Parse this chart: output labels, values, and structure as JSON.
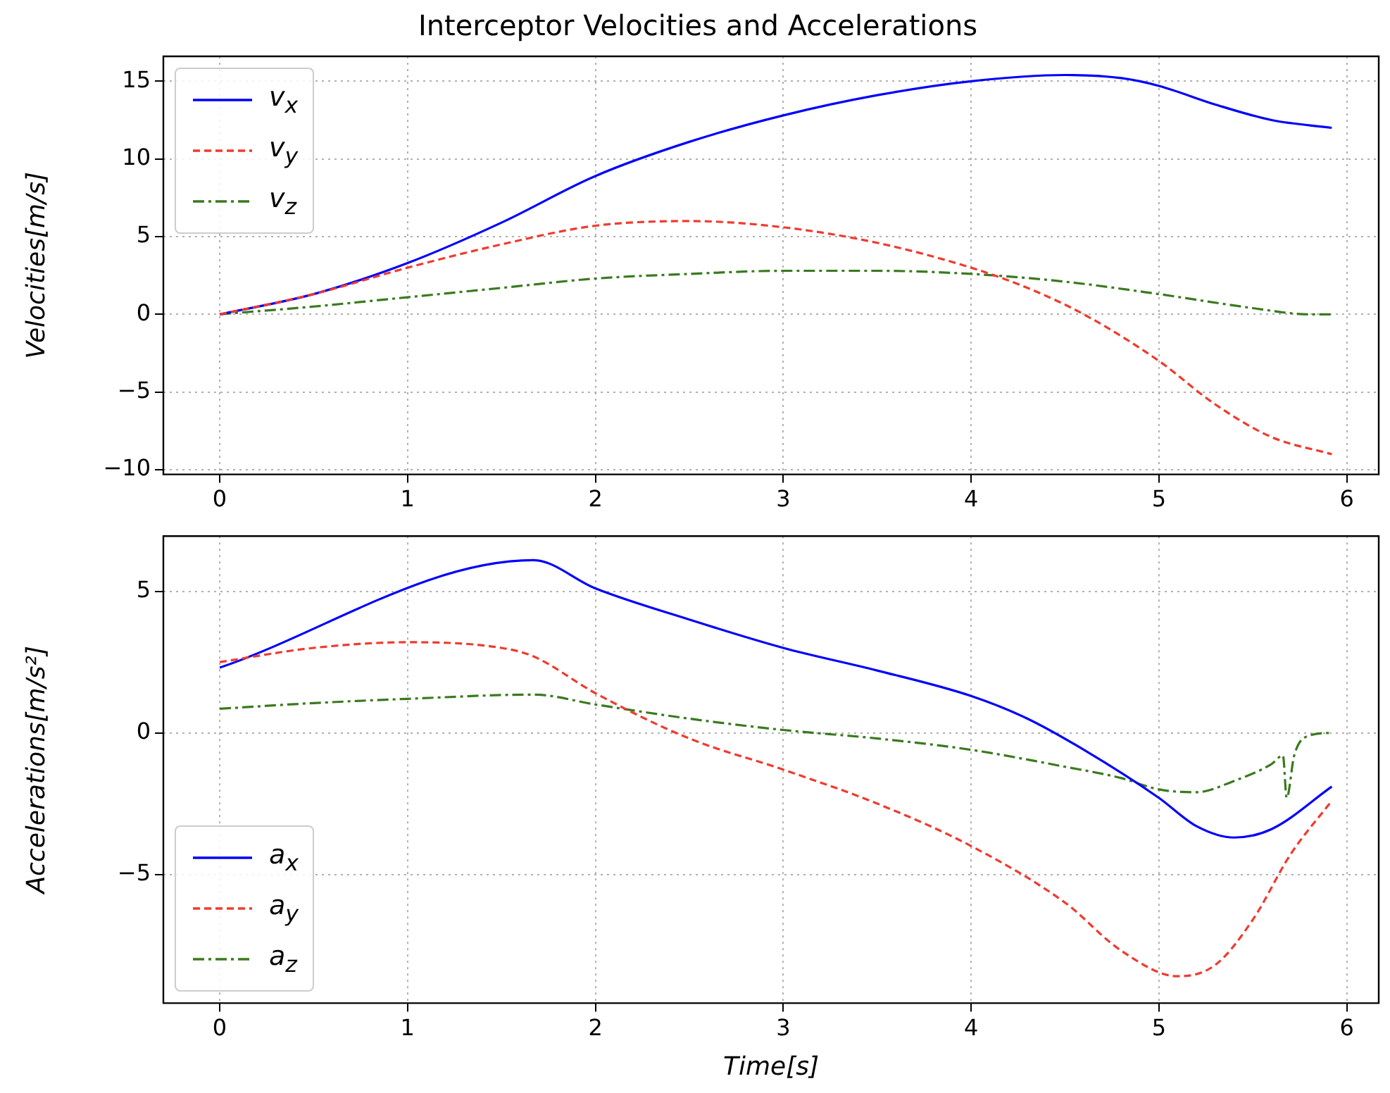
{
  "chart_data": [
    {
      "type": "line",
      "title": "Interceptor Velocities and Accelerations",
      "ylabel": "Velocities[m/s]",
      "xlim": [
        -0.3,
        6.17
      ],
      "xticks": [
        0,
        1,
        2,
        3,
        4,
        5,
        6
      ],
      "ylim": [
        -10.3,
        16.6
      ],
      "yticks": [
        -10,
        -5,
        0,
        5,
        10,
        15
      ],
      "grid": true,
      "legend": "top left",
      "series": [
        {
          "name": "v$_{x}$",
          "color": "#0000ff",
          "line_style": "solid",
          "x": [
            0,
            0.5,
            1,
            1.5,
            2,
            2.5,
            3,
            3.5,
            4,
            4.5,
            4.8,
            5,
            5.3,
            5.6,
            5.92
          ],
          "values": [
            0,
            1.3,
            3.3,
            5.9,
            8.9,
            11.1,
            12.8,
            14.1,
            15.0,
            15.4,
            15.2,
            14.7,
            13.5,
            12.5,
            12.0
          ]
        },
        {
          "name": "v$_{y}$",
          "color": "#f03a2e",
          "line_style": "dashed",
          "x": [
            0,
            0.5,
            1,
            1.5,
            2,
            2.5,
            3,
            3.5,
            4,
            4.3,
            4.6,
            5,
            5.3,
            5.6,
            5.92
          ],
          "values": [
            0,
            1.3,
            3.0,
            4.5,
            5.7,
            6.0,
            5.6,
            4.6,
            3.0,
            1.7,
            0,
            -3.0,
            -5.8,
            -7.9,
            -9.0
          ]
        },
        {
          "name": "v$_{z}$",
          "color": "#3a7a1e",
          "line_style": "dashdot",
          "x": [
            0,
            0.5,
            1,
            1.5,
            2,
            2.5,
            3,
            3.5,
            4,
            4.5,
            5,
            5.5,
            5.8,
            5.92
          ],
          "values": [
            0,
            0.5,
            1.1,
            1.7,
            2.3,
            2.6,
            2.8,
            2.8,
            2.6,
            2.1,
            1.3,
            0.4,
            0.0,
            0
          ]
        }
      ]
    },
    {
      "type": "line",
      "xlabel": "Time[s]",
      "ylabel": "Accelerations[m/s²]",
      "xlim": [
        -0.3,
        6.17
      ],
      "xticks": [
        0,
        1,
        2,
        3,
        4,
        5,
        6
      ],
      "ylim": [
        -9.55,
        6.95
      ],
      "yticks": [
        -5,
        0,
        5
      ],
      "grid": true,
      "legend": "bottom left",
      "series": [
        {
          "name": "a$_{x}$",
          "color": "#0000ff",
          "line_style": "solid",
          "x": [
            0,
            1.67,
            2,
            2.5,
            3,
            3.5,
            4,
            4.3,
            4.6,
            5,
            5.2,
            5.4,
            5.6,
            5.92
          ],
          "values": [
            2.3,
            6.1,
            5.1,
            4.0,
            3.0,
            2.2,
            1.3,
            0.5,
            -0.6,
            -2.3,
            -3.3,
            -3.7,
            -3.4,
            -1.9
          ]
        },
        {
          "name": "a$_{y}$",
          "color": "#f03a2e",
          "line_style": "dashed",
          "x": [
            0,
            0.5,
            1,
            1.5,
            1.67,
            2,
            2.5,
            3,
            3.5,
            4,
            4.5,
            4.8,
            5.1,
            5.3,
            5.5,
            5.7,
            5.92
          ],
          "values": [
            2.5,
            3.0,
            3.2,
            3.0,
            2.7,
            1.4,
            -0.2,
            -1.3,
            -2.5,
            -4.0,
            -6.0,
            -7.7,
            -8.6,
            -8.2,
            -6.6,
            -4.3,
            -2.4
          ]
        },
        {
          "name": "a$_{z}$",
          "color": "#3a7a1e",
          "line_style": "dashdot",
          "x": [
            0,
            0.5,
            1,
            1.67,
            2,
            2.5,
            3,
            3.5,
            4,
            4.5,
            4.8,
            5,
            5.2,
            5.4,
            5.6,
            5.66,
            5.68,
            5.72,
            5.8,
            5.92
          ],
          "values": [
            0.85,
            1.05,
            1.2,
            1.35,
            1.0,
            0.5,
            0.1,
            -0.2,
            -0.6,
            -1.2,
            -1.6,
            -2.0,
            -2.1,
            -1.7,
            -1.1,
            -0.8,
            -2.3,
            -0.8,
            -0.1,
            0
          ]
        }
      ]
    }
  ]
}
